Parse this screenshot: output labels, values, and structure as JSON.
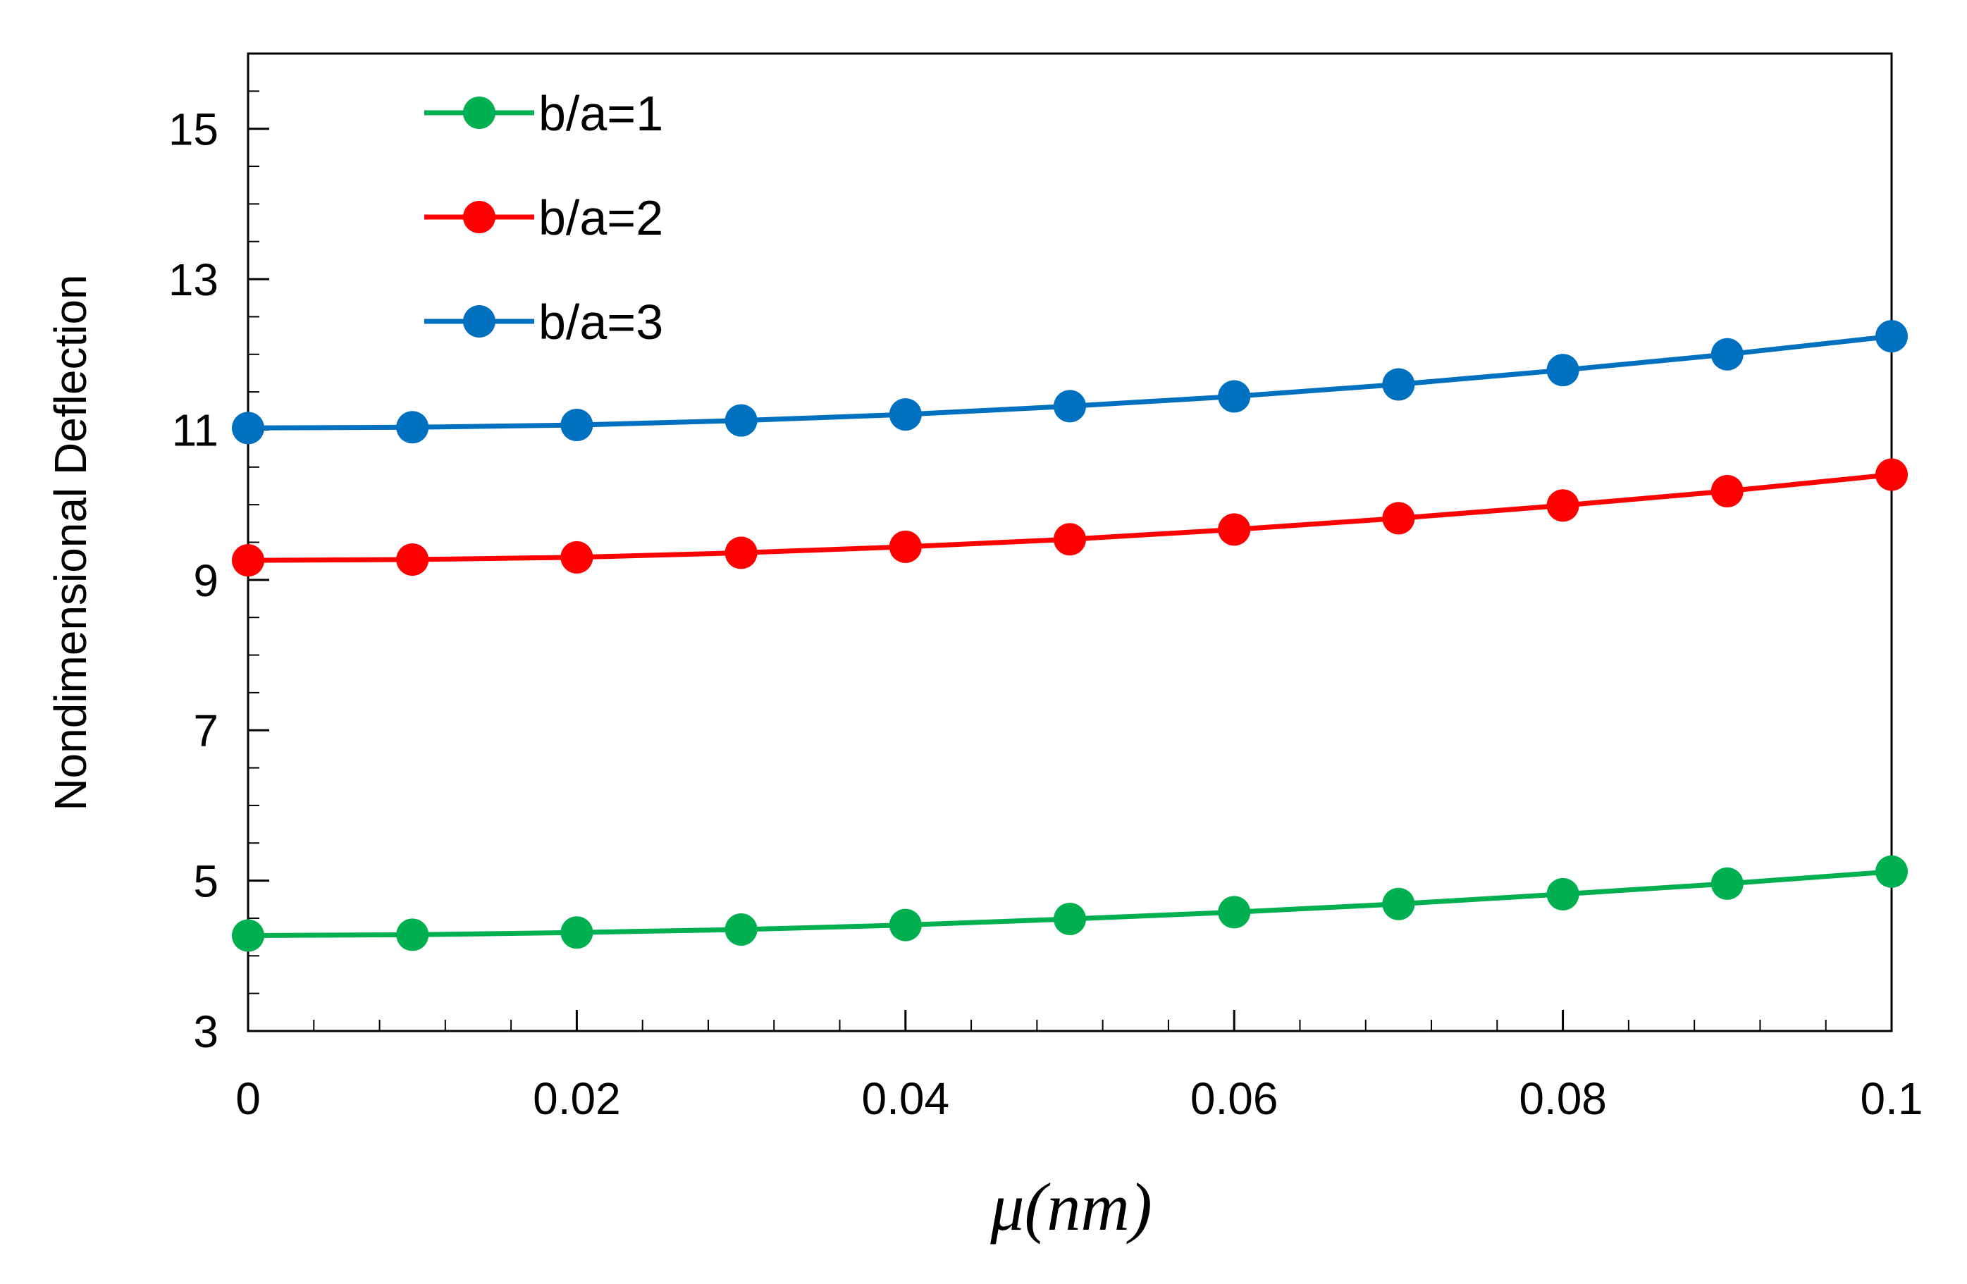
{
  "chart_data": {
    "type": "line",
    "title": "",
    "xlabel": "μ(nm)",
    "ylabel": "Nondimensional Deflection",
    "xlim": [
      0,
      0.1
    ],
    "ylim": [
      3,
      16
    ],
    "x_ticks": [
      0,
      0.02,
      0.04,
      0.06,
      0.08,
      0.1
    ],
    "x_tick_labels": [
      "0",
      "0.02",
      "0.04",
      "0.06",
      "0.08",
      "0.1"
    ],
    "x_minor_step": 0.004,
    "y_ticks": [
      3,
      5,
      7,
      9,
      11,
      13,
      15
    ],
    "y_tick_labels": [
      "3",
      "5",
      "7",
      "9",
      "11",
      "13",
      "15"
    ],
    "y_minor_step": 0.5,
    "grid": false,
    "legend_position": "top-left",
    "x": [
      0,
      0.01,
      0.02,
      0.03,
      0.04,
      0.05,
      0.06,
      0.07,
      0.08,
      0.09,
      0.1
    ],
    "series": [
      {
        "name": "b/a=1",
        "color": "#00b050",
        "values": [
          4.27,
          4.28,
          4.31,
          4.35,
          4.41,
          4.49,
          4.58,
          4.69,
          4.82,
          4.96,
          5.12
        ]
      },
      {
        "name": "b/a=2",
        "color": "#ff0000",
        "values": [
          9.26,
          9.27,
          9.3,
          9.36,
          9.44,
          9.54,
          9.67,
          9.82,
          9.99,
          10.18,
          10.4
        ]
      },
      {
        "name": "b/a=3",
        "color": "#0070c0",
        "values": [
          11.02,
          11.03,
          11.06,
          11.12,
          11.2,
          11.31,
          11.44,
          11.6,
          11.79,
          12.0,
          12.24
        ]
      }
    ]
  }
}
